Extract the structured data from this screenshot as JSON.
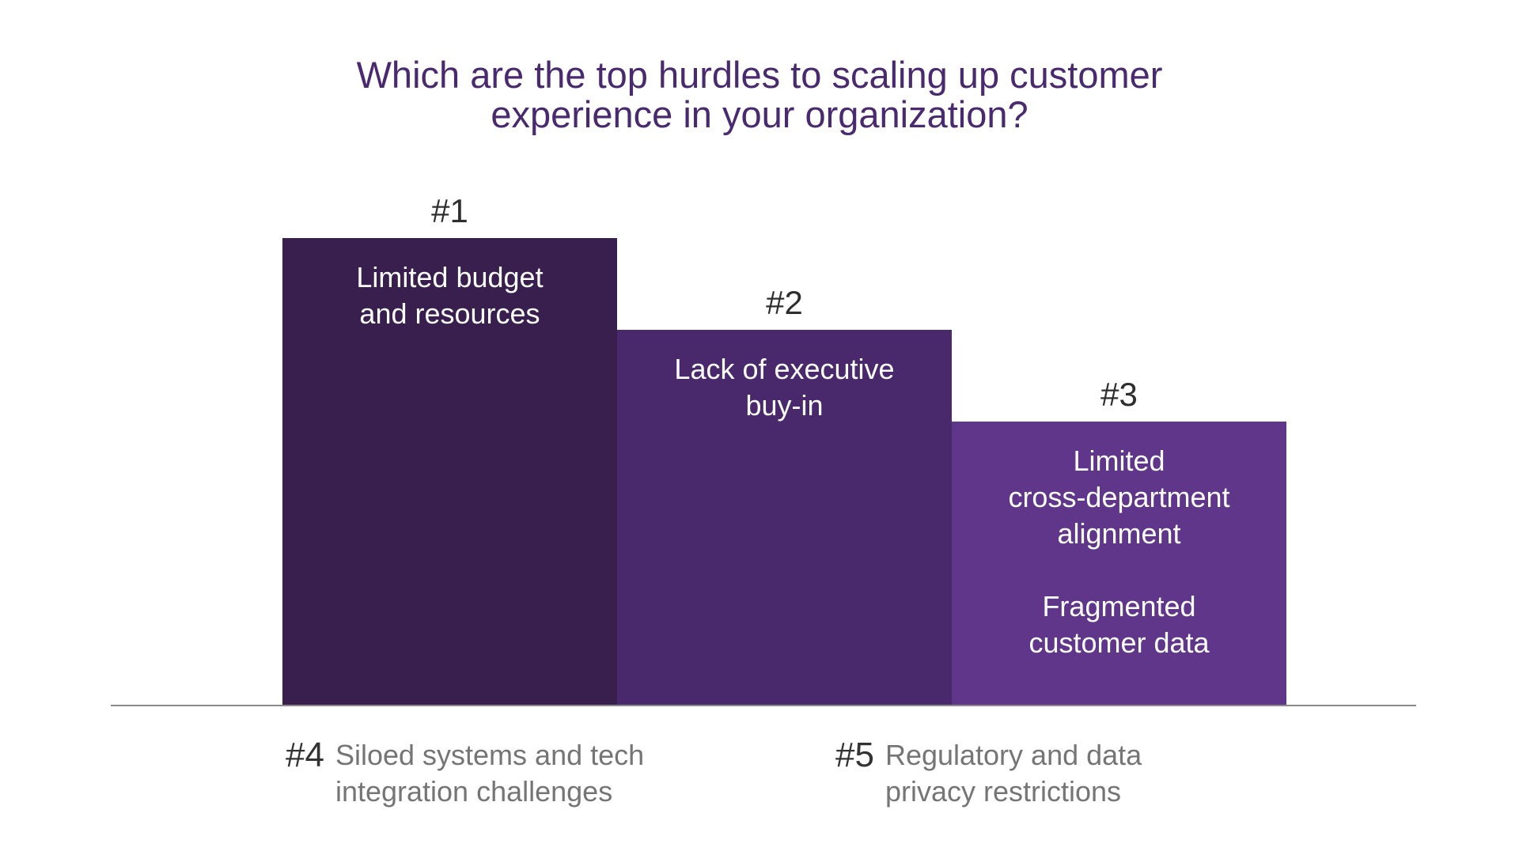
{
  "colors": {
    "title": "#4a2a6e",
    "bar_1": "#381f4e",
    "bar_2": "#4a286c",
    "bar_3": "#5f3689",
    "bar_label": "#ffffff",
    "rank": "#2e2e2e",
    "footnote_text": "#757575",
    "baseline": "#8a8a8a"
  },
  "chart_data": {
    "type": "bar",
    "title": "Which are the top hurdles to scaling up customer experience in your organization?",
    "title_lines": [
      "Which are the top hurdles to scaling up customer",
      "experience in your organization?"
    ],
    "xlabel": "",
    "ylabel": "",
    "ylim": [
      0,
      3
    ],
    "grid": false,
    "categories": [
      "#1",
      "#2",
      "#3"
    ],
    "values": [
      3,
      2,
      1
    ],
    "bars": [
      {
        "rank": "#1",
        "value": 3,
        "label_lines": [
          "Limited budget",
          "and resources"
        ]
      },
      {
        "rank": "#2",
        "value": 2,
        "label_lines": [
          "Lack of executive",
          "buy-in"
        ]
      },
      {
        "rank": "#3",
        "value": 1,
        "label_lines": [
          "Limited",
          "cross-department",
          "alignment",
          "",
          "Fragmented",
          "customer data"
        ]
      }
    ],
    "annotations": [
      {
        "rank": "#4",
        "text": "Siloed systems and tech\nintegration challenges"
      },
      {
        "rank": "#5",
        "text": "Regulatory and data\nprivacy restrictions"
      }
    ]
  }
}
